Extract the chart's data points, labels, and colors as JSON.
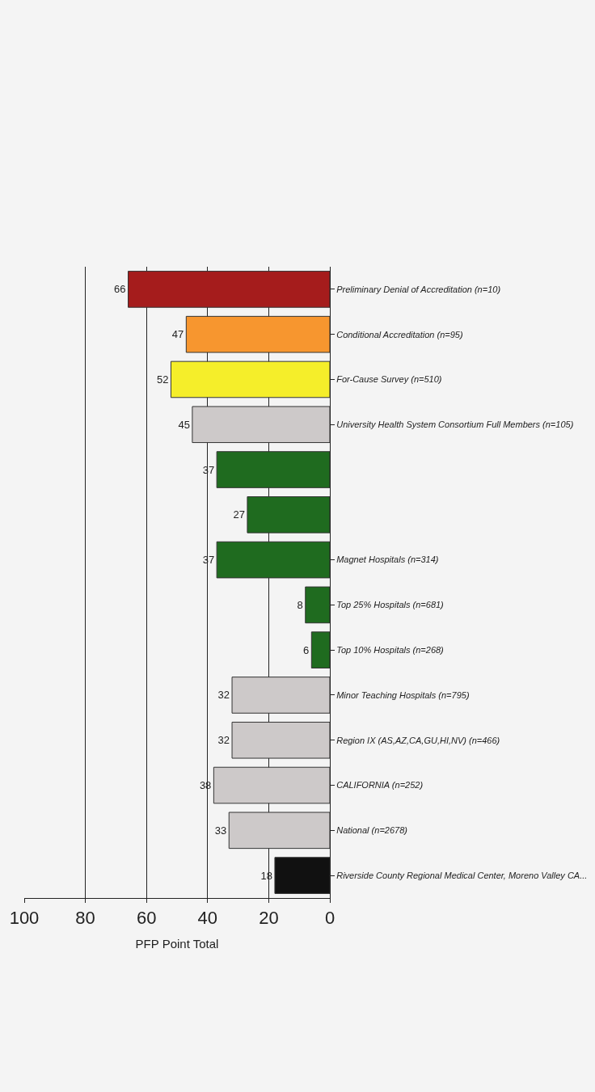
{
  "chart_data": {
    "type": "bar",
    "orientation": "horizontal",
    "xlabel": "PFP Point Total",
    "categories": [
      "Preliminary Denial of Accreditation (n=10)",
      "Conditional Accreditation (n=95)",
      "For-Cause Survey (n=510)",
      "University Health System Consortium Full Members (n=105)",
      null,
      null,
      "Magnet Hospitals (n=314)",
      "Top 25% Hospitals (n=681)",
      "Top 10% Hospitals (n=268)",
      "Minor Teaching Hospitals (n=795)",
      "Region IX (AS,AZ,CA,GU,HI,NV) (n=466)",
      "CALIFORNIA (n=252)",
      "National (n=2678)",
      "Riverside County Regional Medical Center, Moreno Valley CA..."
    ],
    "values": [
      66,
      47,
      52,
      45,
      37,
      27,
      37,
      8,
      6,
      32,
      32,
      38,
      33,
      18
    ],
    "colors": [
      "#a51c1c",
      "#f7962f",
      "#f5ee2a",
      "#cdc9c9",
      "#1f6b1f",
      "#1f6b1f",
      "#1f6b1f",
      "#1f6b1f",
      "#1f6b1f",
      "#cdc9c9",
      "#cdc9c9",
      "#cdc9c9",
      "#cdc9c9",
      "#111111"
    ],
    "xlim": [
      100,
      0
    ],
    "xticks": [
      0,
      20,
      40,
      60,
      80,
      100
    ],
    "grid": "x",
    "data_labels": true,
    "legend": false
  }
}
